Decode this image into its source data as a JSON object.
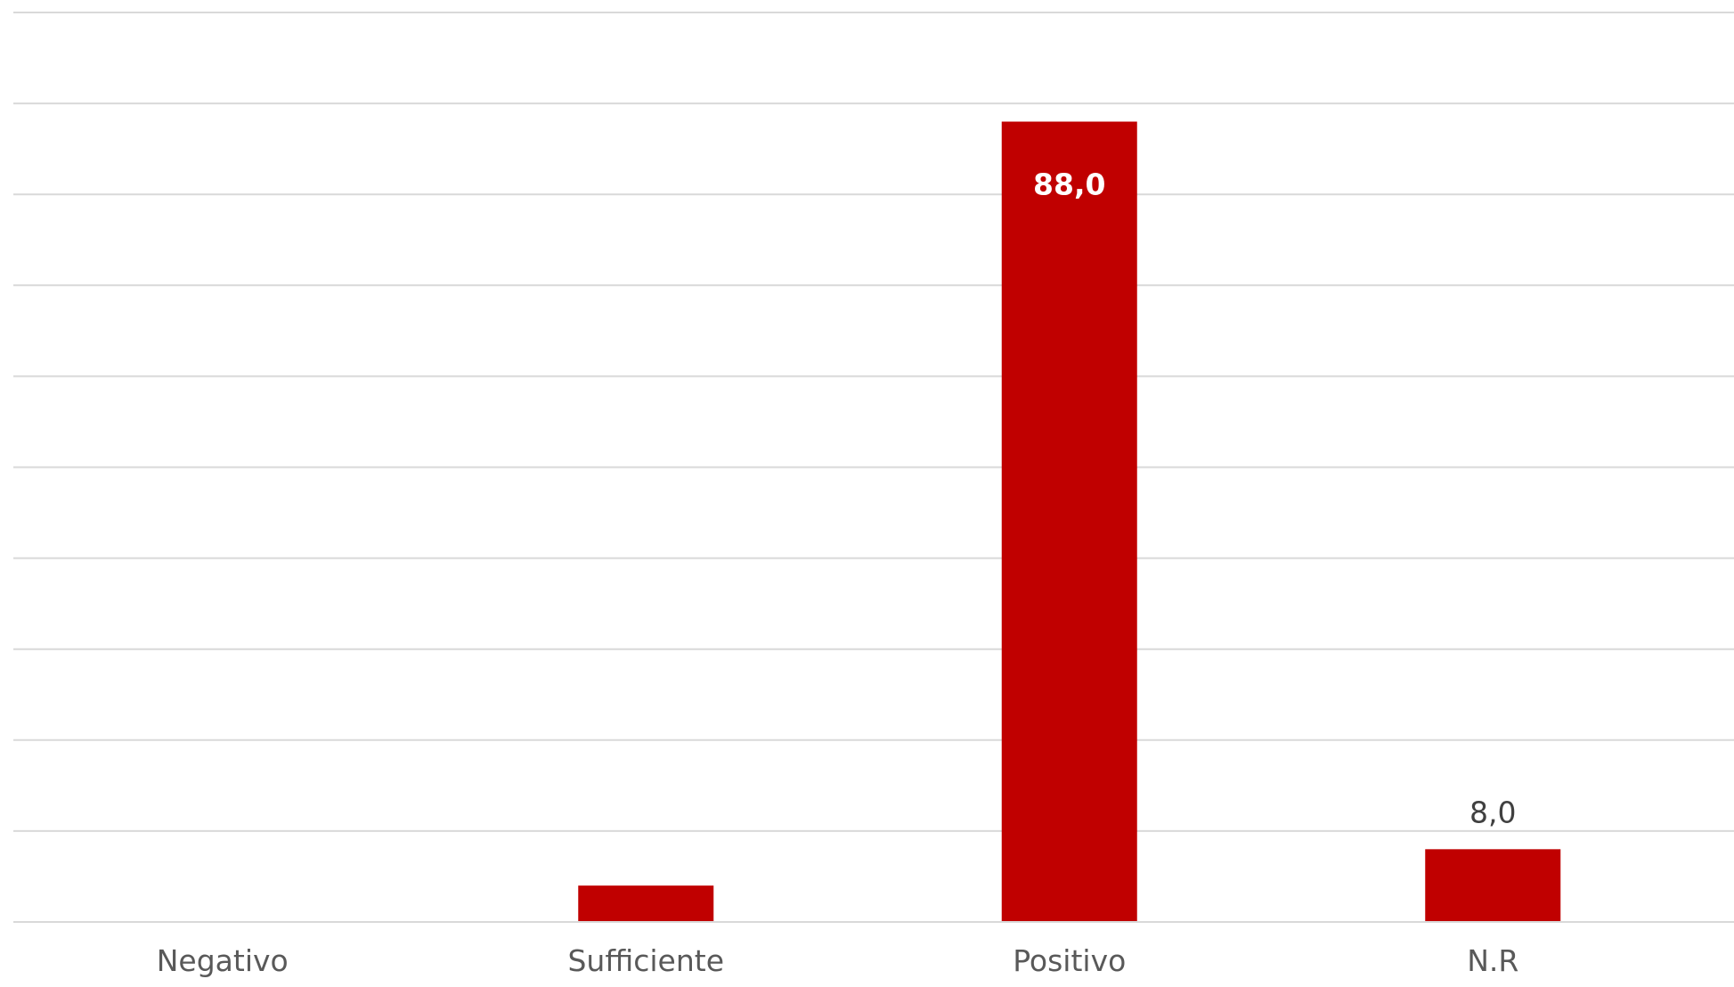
{
  "chart_data": {
    "type": "bar",
    "categories": [
      "Negativo",
      "Sufficiente",
      "Positivo",
      "N.R"
    ],
    "values": [
      0,
      4,
      88,
      8
    ],
    "data_labels": [
      "",
      "",
      "88,0",
      "8,0"
    ],
    "data_label_inside": [
      false,
      false,
      true,
      false
    ],
    "title": "",
    "xlabel": "",
    "ylabel": "",
    "ylim": [
      0,
      100
    ],
    "y_gridline_step": 10,
    "grid": true,
    "y_tick_labels_shown": false,
    "bar_color": "#c00000",
    "inside_label_color": "#ffffff",
    "outside_label_color": "#404040"
  }
}
